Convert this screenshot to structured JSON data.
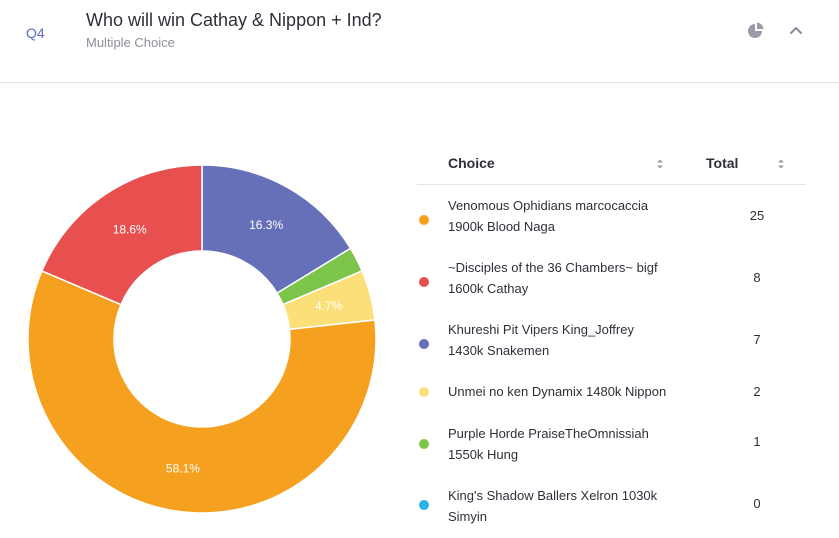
{
  "header": {
    "qnum": "Q4",
    "title": "Who will win Cathay & Nippon + Ind?",
    "subtitle": "Multiple Choice"
  },
  "table": {
    "col_choice": "Choice",
    "col_total": "Total",
    "rows": [
      {
        "line1": "Venomous Ophidians marcocaccia",
        "line2": "1900k Blood Naga",
        "total": "25",
        "color": "#f5a11f"
      },
      {
        "line1": "~Disciples of the 36 Chambers~ bigf",
        "line2": "1600k Cathay",
        "total": "8",
        "color": "#e85050"
      },
      {
        "line1": "Khureshi Pit Vipers King_Joffrey",
        "line2": "1430k Snakemen",
        "total": "7",
        "color": "#6670b8"
      },
      {
        "line1": "Unmei no ken Dynamix 1480k Nippon",
        "line2": "",
        "total": "2",
        "color": "#fbe07a"
      },
      {
        "line1": "Purple Horde PraiseTheOmnissiah",
        "line2": "1550k Hung",
        "total": "1",
        "color": "#7cc44a"
      },
      {
        "line1": "King's Shadow Ballers Xelron 1030k",
        "line2": "Simyin",
        "total": "0",
        "color": "#2bb5e6"
      }
    ]
  },
  "chart_data": {
    "type": "pie",
    "donut": true,
    "title": "",
    "slices": [
      {
        "label": "Venomous Ophidians marcocaccia 1900k Blood Naga",
        "value": 25,
        "percent_label": "58.1%",
        "color": "#f5a11f"
      },
      {
        "label": "~Disciples of the 36 Chambers~ bigf 1600k Cathay",
        "value": 8,
        "percent_label": "18.6%",
        "color": "#e85050"
      },
      {
        "label": "Khureshi Pit Vipers King_Joffrey 1430k Snakemen",
        "value": 7,
        "percent_label": "16.3%",
        "color": "#6670b8"
      },
      {
        "label": "Unmei no ken Dynamix 1480k Nippon",
        "value": 2,
        "percent_label": "4.7%",
        "color": "#fbe07a"
      },
      {
        "label": "Purple Horde PraiseTheOmnissiah 1550k Hung",
        "value": 1,
        "percent_label": "",
        "color": "#7cc44a"
      },
      {
        "label": "King's Shadow Ballers Xelron 1030k Simyin",
        "value": 0,
        "percent_label": "",
        "color": "#2bb5e6"
      }
    ],
    "legend": "table-right"
  }
}
